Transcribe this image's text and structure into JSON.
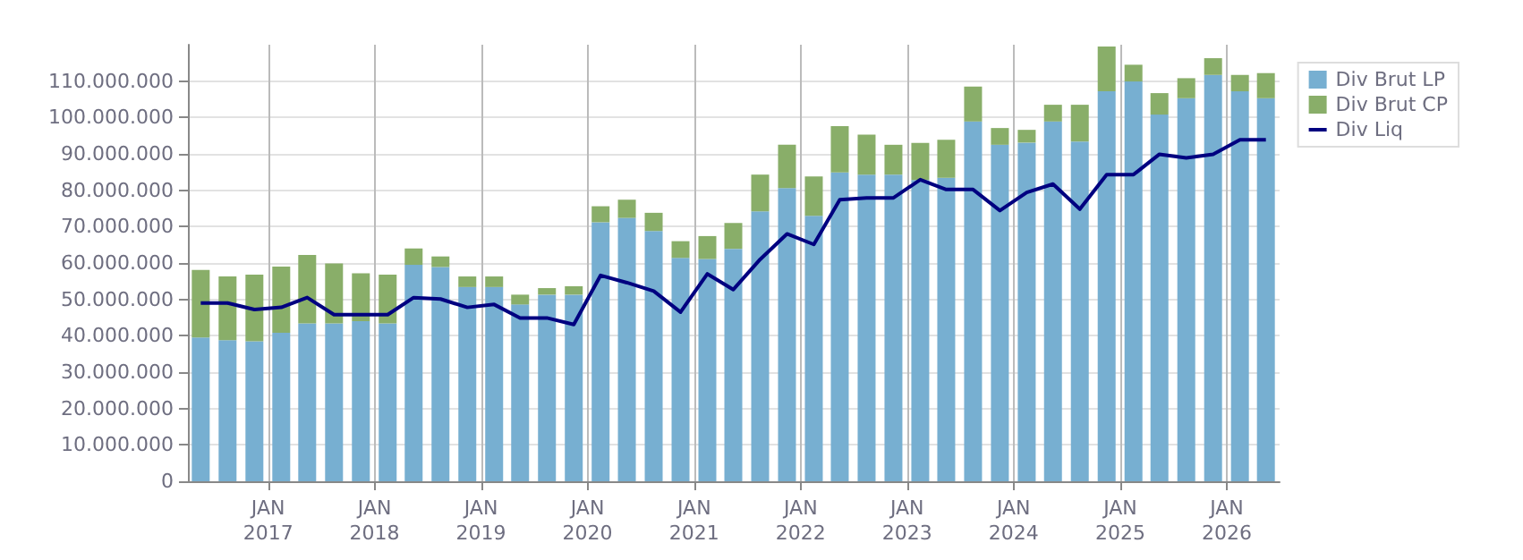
{
  "chart_data": {
    "type": "bar",
    "stacked": true,
    "x": [
      "2016-05-15",
      "2016-08-15",
      "2016-11-15",
      "2017-02-15",
      "2017-05-15",
      "2017-08-15",
      "2017-11-15",
      "2018-02-15",
      "2018-05-15",
      "2018-08-15",
      "2018-11-15",
      "2019-02-15",
      "2019-05-15",
      "2019-08-15",
      "2019-11-15",
      "2020-02-15",
      "2020-05-15",
      "2020-08-15",
      "2020-11-15",
      "2021-02-15",
      "2021-05-15",
      "2021-08-15",
      "2021-11-15",
      "2022-02-15",
      "2022-05-15",
      "2022-08-15",
      "2022-11-15",
      "2023-02-15",
      "2023-05-15",
      "2023-08-15",
      "2023-11-15",
      "2024-02-15",
      "2024-05-15",
      "2024-08-15",
      "2024-11-15",
      "2025-02-15",
      "2025-05-15",
      "2025-08-15",
      "2025-11-15",
      "2026-02-15",
      "2026-05-15"
    ],
    "series": [
      {
        "name": "Div Brut LP",
        "color": "#77afd1",
        "values": [
          39500000,
          38800000,
          38500000,
          40800000,
          43400000,
          43400000,
          44000000,
          43400000,
          59500000,
          58900000,
          53400000,
          53400000,
          48600000,
          51300000,
          51300000,
          71200000,
          72400000,
          68800000,
          61400000,
          61100000,
          63900000,
          74200000,
          80600000,
          73000000,
          84900000,
          84300000,
          84300000,
          82800000,
          83400000,
          98900000,
          92500000,
          93100000,
          98900000,
          93400000,
          107200000,
          109900000,
          100800000,
          105300000,
          111700000,
          107200000,
          105300000
        ]
      },
      {
        "name": "Div Brut CP",
        "color": "#89ae69",
        "values": [
          18600000,
          17500000,
          18300000,
          18200000,
          18800000,
          16500000,
          13200000,
          13400000,
          4500000,
          2900000,
          2900000,
          2900000,
          2700000,
          1800000,
          2300000,
          4400000,
          5000000,
          5000000,
          4600000,
          6300000,
          7100000,
          10100000,
          11900000,
          10800000,
          12700000,
          11000000,
          8200000,
          10200000,
          10500000,
          9600000,
          4600000,
          3500000,
          4600000,
          10100000,
          12300000,
          4600000,
          5900000,
          5500000,
          4600000,
          4500000,
          6900000
        ]
      },
      {
        "name": "Div Liq",
        "type": "line",
        "color": "#000080",
        "values": [
          49000000,
          49000000,
          47200000,
          47800000,
          50500000,
          45800000,
          45800000,
          45800000,
          50500000,
          50100000,
          47800000,
          48600000,
          44900000,
          44900000,
          43100000,
          56600000,
          54600000,
          52300000,
          46500000,
          57000000,
          52700000,
          61000000,
          68000000,
          65100000,
          77400000,
          77900000,
          77900000,
          82900000,
          80200000,
          80200000,
          74400000,
          79400000,
          81700000,
          74800000,
          84300000,
          84300000,
          89900000,
          88900000,
          89900000,
          93900000,
          93900000
        ]
      }
    ],
    "xlim": [
      "2016-04-01",
      "2026-07-01"
    ],
    "xticks": [
      {
        "value": "2017-01-01",
        "label": "JAN\n2017"
      },
      {
        "value": "2018-01-01",
        "label": "JAN\n2018"
      },
      {
        "value": "2019-01-01",
        "label": "JAN\n2019"
      },
      {
        "value": "2020-01-01",
        "label": "JAN\n2020"
      },
      {
        "value": "2021-01-01",
        "label": "JAN\n2021"
      },
      {
        "value": "2022-01-01",
        "label": "JAN\n2022"
      },
      {
        "value": "2023-01-01",
        "label": "JAN\n2023"
      },
      {
        "value": "2024-01-01",
        "label": "JAN\n2024"
      },
      {
        "value": "2025-01-01",
        "label": "JAN\n2025"
      },
      {
        "value": "2026-01-01",
        "label": "JAN\n2026"
      }
    ],
    "ylim": [
      0,
      120000000
    ],
    "yticks": [
      {
        "value": 0,
        "label": "0"
      },
      {
        "value": 10000000,
        "label": "10.000.000"
      },
      {
        "value": 20000000,
        "label": "20.000.000"
      },
      {
        "value": 30000000,
        "label": "30.000.000"
      },
      {
        "value": 40000000,
        "label": "40.000.000"
      },
      {
        "value": 50000000,
        "label": "50.000.000"
      },
      {
        "value": 60000000,
        "label": "60.000.000"
      },
      {
        "value": 70000000,
        "label": "70.000.000"
      },
      {
        "value": 80000000,
        "label": "80.000.000"
      },
      {
        "value": 90000000,
        "label": "90.000.000"
      },
      {
        "value": 100000000,
        "label": "100.000.000"
      },
      {
        "value": 110000000,
        "label": "110.000.000"
      }
    ],
    "grid": true,
    "legend": "top right",
    "marker": "none",
    "line_style": "solid"
  }
}
